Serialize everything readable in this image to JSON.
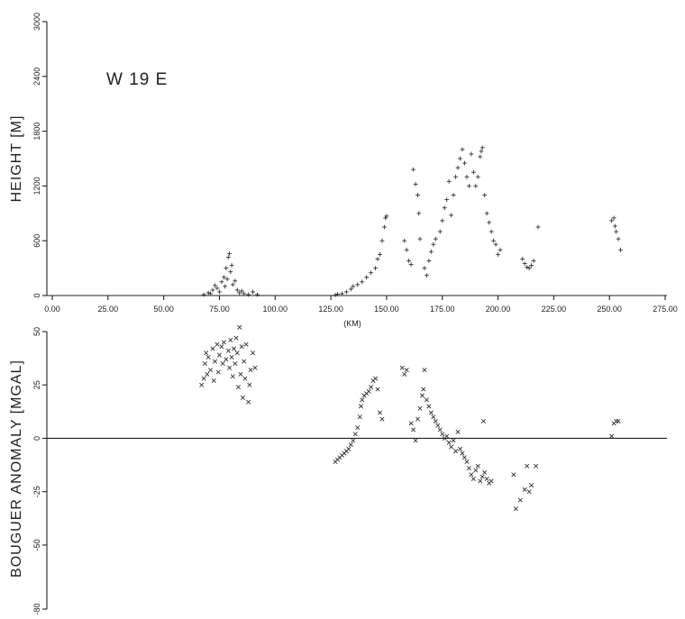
{
  "chart_data": [
    {
      "type": "scatter",
      "profile_label": "W 19 E",
      "ylabel": "HEIGHT  [M]",
      "xlabel": "(KM)",
      "marker": "plus",
      "xlim": [
        0,
        275
      ],
      "ylim": [
        0,
        3000
      ],
      "xticks": [
        0,
        25,
        50,
        75,
        100,
        125,
        150,
        175,
        200,
        225,
        250,
        275
      ],
      "xtick_labels": [
        "0.00",
        "25.00",
        "50.00",
        "75.00",
        "100.00",
        "125.00",
        "150.00",
        "175.00",
        "200.00",
        "225.00",
        "250.00",
        "275.00"
      ],
      "yticks": [
        0,
        600,
        1200,
        1800,
        2400,
        3000
      ],
      "ytick_labels": [
        "0",
        "600",
        "1200",
        "1800",
        "2400",
        "3000"
      ],
      "points": [
        [
          68,
          10
        ],
        [
          70,
          30
        ],
        [
          71,
          20
        ],
        [
          72,
          60
        ],
        [
          73,
          110
        ],
        [
          74,
          80
        ],
        [
          75,
          40
        ],
        [
          76,
          150
        ],
        [
          77,
          200
        ],
        [
          77.5,
          100
        ],
        [
          78,
          300
        ],
        [
          78.5,
          180
        ],
        [
          79,
          420
        ],
        [
          79.5,
          460
        ],
        [
          80,
          260
        ],
        [
          80.5,
          330
        ],
        [
          81,
          120
        ],
        [
          82,
          160
        ],
        [
          83,
          60
        ],
        [
          84,
          30
        ],
        [
          85,
          50
        ],
        [
          86,
          20
        ],
        [
          88,
          10
        ],
        [
          90,
          40
        ],
        [
          92,
          10
        ],
        [
          127,
          5
        ],
        [
          128,
          15
        ],
        [
          130,
          20
        ],
        [
          132,
          40
        ],
        [
          134,
          70
        ],
        [
          135,
          100
        ],
        [
          137,
          120
        ],
        [
          139,
          150
        ],
        [
          141,
          200
        ],
        [
          143,
          250
        ],
        [
          145,
          300
        ],
        [
          146,
          400
        ],
        [
          147,
          450
        ],
        [
          148,
          600
        ],
        [
          149,
          750
        ],
        [
          149.5,
          850
        ],
        [
          150,
          870
        ],
        [
          158,
          600
        ],
        [
          159,
          500
        ],
        [
          160,
          380
        ],
        [
          161,
          340
        ],
        [
          162,
          1380
        ],
        [
          163,
          1220
        ],
        [
          164,
          1100
        ],
        [
          164.5,
          900
        ],
        [
          165,
          620
        ],
        [
          167,
          300
        ],
        [
          168,
          220
        ],
        [
          169,
          380
        ],
        [
          170,
          480
        ],
        [
          171,
          560
        ],
        [
          172,
          620
        ],
        [
          174,
          700
        ],
        [
          175,
          820
        ],
        [
          176,
          960
        ],
        [
          177,
          1050
        ],
        [
          178,
          1250
        ],
        [
          179,
          880
        ],
        [
          180,
          1100
        ],
        [
          181,
          1300
        ],
        [
          182,
          1400
        ],
        [
          183,
          1500
        ],
        [
          184,
          1600
        ],
        [
          185,
          1450
        ],
        [
          186,
          1300
        ],
        [
          187,
          1200
        ],
        [
          188,
          1550
        ],
        [
          189,
          1350
        ],
        [
          190,
          1200
        ],
        [
          191,
          1300
        ],
        [
          192,
          1520
        ],
        [
          192.5,
          1580
        ],
        [
          193,
          1620
        ],
        [
          194,
          1100
        ],
        [
          195,
          900
        ],
        [
          196,
          800
        ],
        [
          197,
          700
        ],
        [
          198,
          600
        ],
        [
          199,
          560
        ],
        [
          200,
          450
        ],
        [
          201,
          500
        ],
        [
          211,
          400
        ],
        [
          212,
          350
        ],
        [
          213,
          310
        ],
        [
          214,
          300
        ],
        [
          215,
          330
        ],
        [
          216,
          380
        ],
        [
          218,
          750
        ],
        [
          251,
          820
        ],
        [
          252,
          850
        ],
        [
          252.5,
          760
        ],
        [
          253,
          700
        ],
        [
          254,
          620
        ],
        [
          255,
          500
        ]
      ]
    },
    {
      "type": "scatter",
      "ylabel": "BOUGUER  ANOMALY  [MGAL]",
      "marker": "x",
      "xlim": [
        0,
        275
      ],
      "ylim": [
        -80,
        50
      ],
      "yticks": [
        50,
        25,
        0,
        -25,
        -50,
        -80
      ],
      "ytick_labels": [
        "50",
        "25",
        "0",
        "-25",
        "-50",
        "-80"
      ],
      "zero_line": true,
      "points": [
        [
          67,
          25
        ],
        [
          68,
          28
        ],
        [
          68.5,
          35
        ],
        [
          69,
          40
        ],
        [
          69.5,
          30
        ],
        [
          70,
          38
        ],
        [
          71,
          32
        ],
        [
          72,
          42
        ],
        [
          72.5,
          27
        ],
        [
          73,
          36
        ],
        [
          74,
          44
        ],
        [
          74.5,
          31
        ],
        [
          75,
          39
        ],
        [
          76,
          43
        ],
        [
          76.5,
          35
        ],
        [
          77,
          45
        ],
        [
          78,
          37
        ],
        [
          79,
          41
        ],
        [
          79.5,
          33
        ],
        [
          80,
          46
        ],
        [
          80.5,
          38
        ],
        [
          81,
          29
        ],
        [
          81.5,
          42
        ],
        [
          82,
          35
        ],
        [
          82.5,
          47
        ],
        [
          83,
          40
        ],
        [
          83.5,
          24
        ],
        [
          84,
          52
        ],
        [
          84.5,
          30
        ],
        [
          85,
          43
        ],
        [
          85.5,
          19
        ],
        [
          86,
          36
        ],
        [
          86.5,
          28
        ],
        [
          87,
          44
        ],
        [
          88,
          17
        ],
        [
          88.5,
          25
        ],
        [
          89,
          32
        ],
        [
          90,
          40
        ],
        [
          91,
          33
        ],
        [
          127,
          -11
        ],
        [
          128,
          -10
        ],
        [
          129,
          -9
        ],
        [
          130,
          -8
        ],
        [
          131,
          -7
        ],
        [
          132,
          -6
        ],
        [
          133,
          -5
        ],
        [
          134,
          -3
        ],
        [
          135,
          -1
        ],
        [
          136,
          2
        ],
        [
          137,
          5
        ],
        [
          138,
          10
        ],
        [
          138.5,
          15
        ],
        [
          139,
          18
        ],
        [
          140,
          20
        ],
        [
          141,
          21
        ],
        [
          142,
          22
        ],
        [
          143,
          24
        ],
        [
          144,
          27
        ],
        [
          145,
          28
        ],
        [
          146,
          23
        ],
        [
          147,
          12
        ],
        [
          148,
          9
        ],
        [
          157,
          33
        ],
        [
          158,
          30
        ],
        [
          159,
          32
        ],
        [
          161,
          7
        ],
        [
          162,
          4
        ],
        [
          163,
          -1
        ],
        [
          164,
          9
        ],
        [
          165,
          14
        ],
        [
          166,
          20
        ],
        [
          166.5,
          23
        ],
        [
          167,
          32
        ],
        [
          168,
          18
        ],
        [
          169,
          15
        ],
        [
          170,
          12
        ],
        [
          171,
          10
        ],
        [
          172,
          8
        ],
        [
          173,
          6
        ],
        [
          174,
          4
        ],
        [
          175,
          2
        ],
        [
          176,
          0
        ],
        [
          177,
          1
        ],
        [
          178,
          -2
        ],
        [
          179,
          -4
        ],
        [
          180,
          -1
        ],
        [
          181,
          -6
        ],
        [
          182,
          3
        ],
        [
          183,
          -5
        ],
        [
          184,
          -7
        ],
        [
          185,
          -9
        ],
        [
          186,
          -11
        ],
        [
          187,
          -14
        ],
        [
          188,
          -17
        ],
        [
          189,
          -19
        ],
        [
          190,
          -15
        ],
        [
          191,
          -13
        ],
        [
          192,
          -20
        ],
        [
          193,
          -18
        ],
        [
          193.5,
          8
        ],
        [
          194,
          -16
        ],
        [
          195,
          -19
        ],
        [
          196,
          -21
        ],
        [
          197,
          -20
        ],
        [
          207,
          -17
        ],
        [
          208,
          -33
        ],
        [
          210,
          -29
        ],
        [
          212,
          -24
        ],
        [
          213,
          -13
        ],
        [
          214,
          -25
        ],
        [
          215,
          -22
        ],
        [
          217,
          -13
        ],
        [
          251,
          1
        ],
        [
          252,
          7
        ],
        [
          253,
          8
        ],
        [
          254,
          8
        ]
      ]
    }
  ]
}
